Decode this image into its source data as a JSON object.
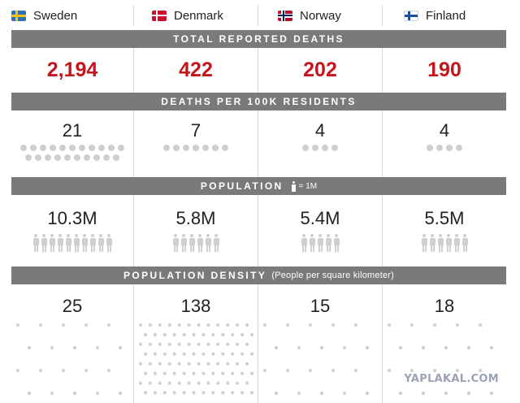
{
  "countries": [
    {
      "name": "Sweden",
      "flag": "sweden-flag-icon"
    },
    {
      "name": "Denmark",
      "flag": "denmark-flag-icon"
    },
    {
      "name": "Norway",
      "flag": "norway-flag-icon"
    },
    {
      "name": "Finland",
      "flag": "finland-flag-icon"
    }
  ],
  "sections": {
    "deaths": {
      "title": "TOTAL REPORTED DEATHS",
      "values": [
        "2,194",
        "422",
        "202",
        "190"
      ]
    },
    "per100k": {
      "title": "DEATHS PER 100K RESIDENTS",
      "values": [
        "21",
        "7",
        "4",
        "4"
      ],
      "dot_counts": [
        21,
        7,
        4,
        4
      ]
    },
    "population": {
      "title": "POPULATION",
      "legend": "= 1M",
      "values": [
        "10.3M",
        "5.8M",
        "5.4M",
        "5.5M"
      ],
      "person_counts": [
        10,
        6,
        5,
        6
      ]
    },
    "density": {
      "title": "POPULATION DENSITY",
      "subtitle": "(People per square kilometer)",
      "values": [
        "25",
        "138",
        "15",
        "18"
      ]
    }
  },
  "colors": {
    "accent_red": "#c4161c",
    "bar_gray": "#7a7a7a",
    "icon_gray": "#cfcfcf"
  },
  "watermark": "YAPLAKAL.COM"
}
